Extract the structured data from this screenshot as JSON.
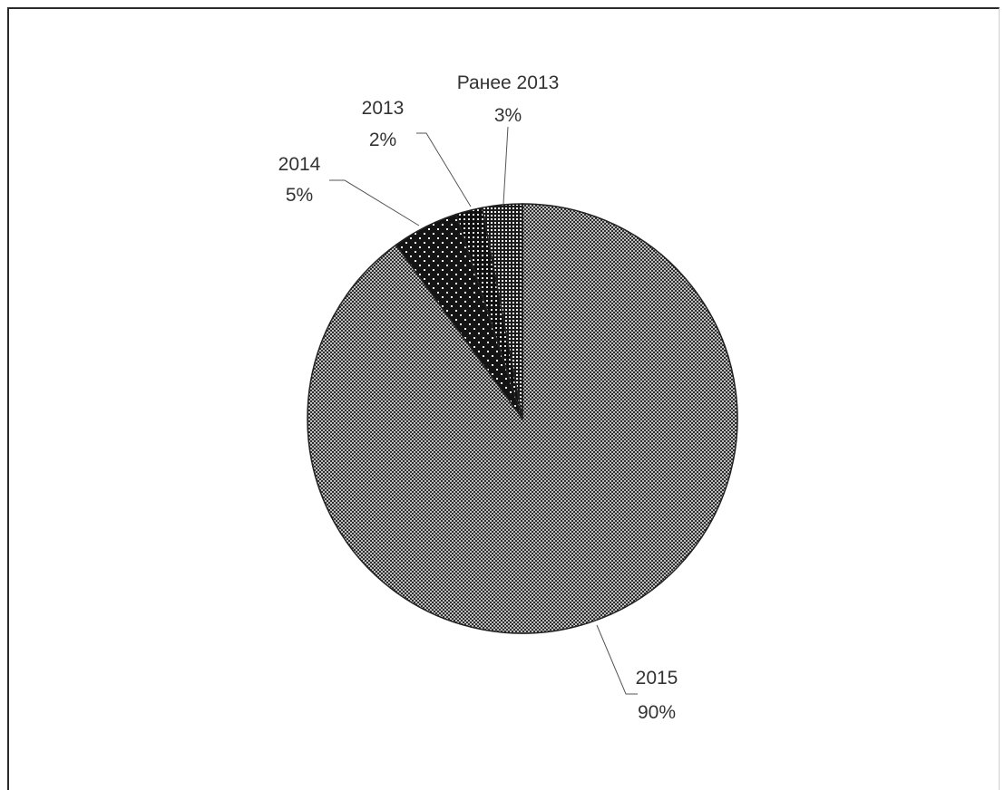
{
  "chart_data": {
    "type": "pie",
    "title": "",
    "slices": [
      {
        "category": "2015",
        "percent_label": "90%",
        "value": 90,
        "color": "#9a9a9a",
        "pattern": "dense-dots"
      },
      {
        "category": "2014",
        "percent_label": "5%",
        "value": 5,
        "color": "#1a1a1a",
        "pattern": "dark-sparse-dots"
      },
      {
        "category": "2013",
        "percent_label": "2%",
        "value": 2,
        "color": "#101010",
        "pattern": "dark-dense-dots"
      },
      {
        "category": "Ранее 2013",
        "percent_label": "3%",
        "value": 3,
        "color": "#e0e0e0",
        "pattern": "light-dots"
      }
    ],
    "start_angle_deg": 0,
    "direction": "clockwise",
    "legend": "none"
  }
}
